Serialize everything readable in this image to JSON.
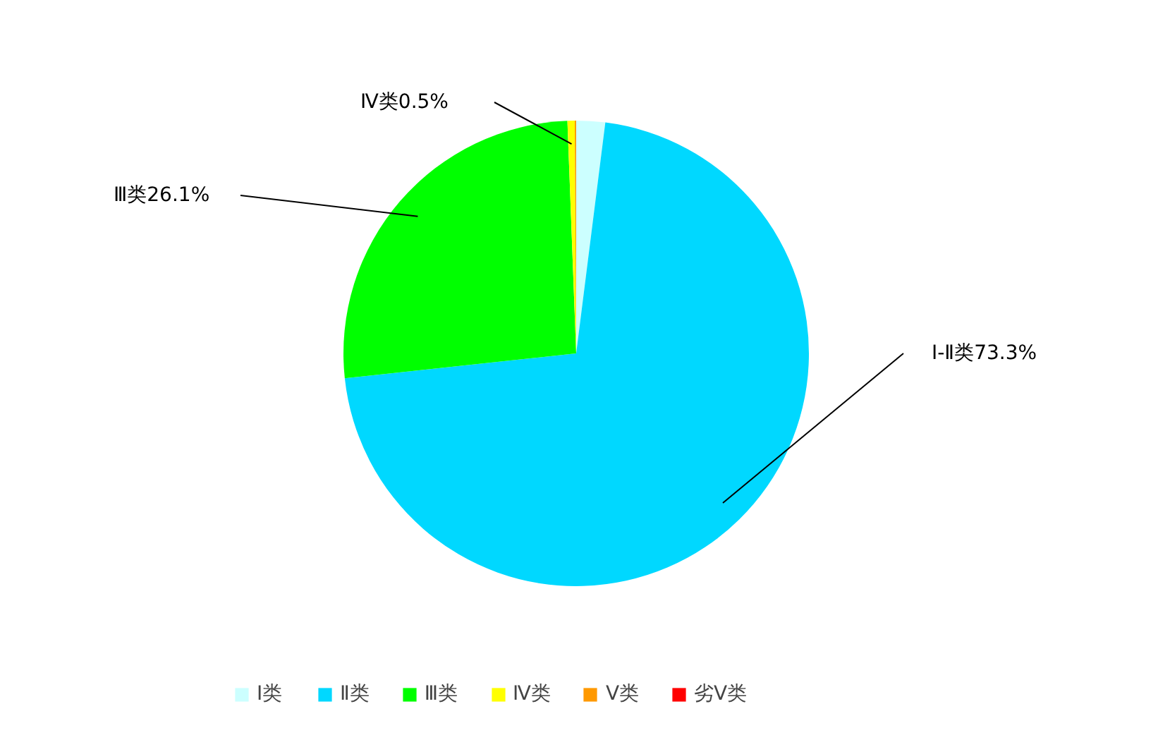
{
  "chart_data": {
    "type": "pie",
    "categories": [
      "Ⅰ类",
      "Ⅱ类",
      "Ⅲ类",
      "Ⅳ类",
      "Ⅴ类",
      "劣Ⅴ类"
    ],
    "values": [
      2.0,
      71.3,
      26.1,
      0.5,
      0.1,
      0
    ],
    "colors": [
      "#ccffff",
      "#00d8ff",
      "#00ff00",
      "#ffff00",
      "#ff9900",
      "#ff0000"
    ],
    "annotations": [
      "Ⅰ-Ⅱ类73.3%",
      "Ⅲ类26.1%",
      "Ⅳ类0.5%"
    ],
    "legend": "bottom"
  }
}
